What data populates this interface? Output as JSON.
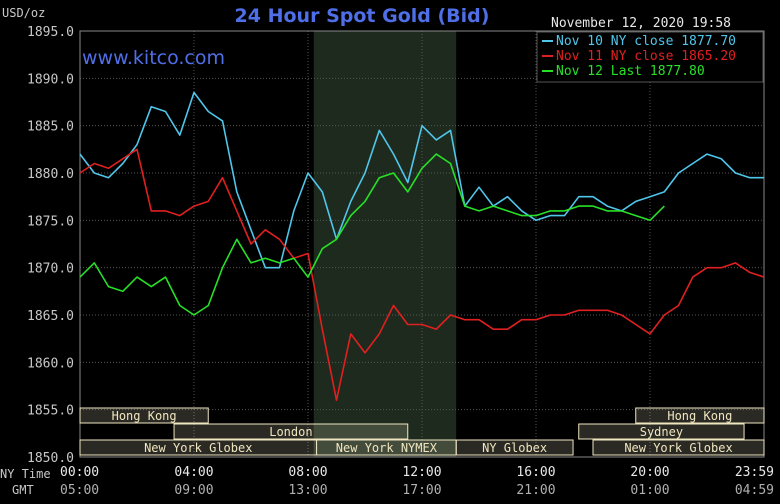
{
  "chart_data": {
    "type": "line",
    "title": "24 Hour Spot Gold (Bid)",
    "unit_label": "USD/oz",
    "timestamp": "November 12, 2020 19:58",
    "watermark": "www.kitco.com",
    "ylim": [
      1850,
      1895
    ],
    "yticks": [
      "1895.0",
      "1890.0",
      "1885.0",
      "1880.0",
      "1875.0",
      "1870.0",
      "1865.0",
      "1860.0",
      "1855.0",
      "1850.0"
    ],
    "xlim": [
      0,
      24
    ],
    "xticks": [
      {
        "x": 0,
        "ny": "00:00",
        "gmt": "05:00"
      },
      {
        "x": 4,
        "ny": "04:00",
        "gmt": "09:00"
      },
      {
        "x": 8,
        "ny": "08:00",
        "gmt": "13:00"
      },
      {
        "x": 12,
        "ny": "12:00",
        "gmt": "17:00"
      },
      {
        "x": 16,
        "ny": "16:00",
        "gmt": "21:00"
      },
      {
        "x": 20,
        "ny": "20:00",
        "gmt": "01:00"
      },
      {
        "x": 24,
        "ny": "23:59",
        "gmt": "04:59"
      }
    ],
    "axis_row_labels": {
      "ny": "NY Time",
      "gmt": "GMT"
    },
    "colors": {
      "background": "#000000",
      "grid": "#555555",
      "axis_text": "#c8c8c8",
      "title": "#4f6fe8",
      "nymex_band": "#1e2a1e",
      "session_fill": "#efe6c0",
      "session_text": "#000000"
    },
    "nymex_band": [
      8.2,
      13.2
    ],
    "sessions": [
      {
        "label": "Hong Kong",
        "row": 0,
        "start": 0,
        "end": 4.5
      },
      {
        "label": "London",
        "row": 1,
        "start": 3.3,
        "end": 11.5
      },
      {
        "label": "New York Globex",
        "row": 2,
        "start": 0,
        "end": 8.3
      },
      {
        "label": "New York NYMEX",
        "row": 2,
        "start": 8.3,
        "end": 13.2
      },
      {
        "label": "NY Globex",
        "row": 2,
        "start": 13.2,
        "end": 17.3
      },
      {
        "label": "Hong Kong",
        "row": 0,
        "start": 19.5,
        "end": 24
      },
      {
        "label": "Sydney",
        "row": 1,
        "start": 17.5,
        "end": 23.3
      },
      {
        "label": "New York Globex",
        "row": 2,
        "start": 18,
        "end": 24
      }
    ],
    "series": [
      {
        "name": "Nov 10 NY close 1877.70",
        "color": "#4fc6ea",
        "x": [
          0,
          0.5,
          1,
          1.5,
          2,
          2.5,
          3,
          3.5,
          4,
          4.5,
          5,
          5.5,
          6,
          6.5,
          7,
          7.5,
          8,
          8.5,
          9,
          9.5,
          10,
          10.5,
          11,
          11.5,
          12,
          12.5,
          13,
          13.5,
          14,
          14.5,
          15,
          15.5,
          16,
          16.5,
          17,
          17.5,
          18,
          18.5,
          19,
          19.5,
          20,
          20.5,
          21,
          21.5,
          22,
          22.5,
          23,
          23.5,
          24
        ],
        "values": [
          1882.0,
          1880.0,
          1879.5,
          1881.0,
          1883.0,
          1887.0,
          1886.5,
          1884.0,
          1888.5,
          1886.5,
          1885.5,
          1878.0,
          1874.0,
          1870.0,
          1870.0,
          1876.0,
          1880.0,
          1878.0,
          1873.0,
          1877.0,
          1880.0,
          1884.5,
          1882.0,
          1879.0,
          1885.0,
          1883.5,
          1884.5,
          1876.5,
          1878.5,
          1876.5,
          1877.5,
          1876.0,
          1875.0,
          1875.5,
          1875.5,
          1877.5,
          1877.5,
          1876.5,
          1876.0,
          1877.0,
          1877.5,
          1878.0,
          1880.0,
          1881.0,
          1882.0,
          1881.5,
          1880.0,
          1879.5,
          1879.5
        ]
      },
      {
        "name": "Nov 11 NY close 1865.20",
        "color": "#e02020",
        "x": [
          0,
          0.5,
          1,
          1.5,
          2,
          2.5,
          3,
          3.5,
          4,
          4.5,
          5,
          5.5,
          6,
          6.5,
          7,
          7.5,
          8,
          8.5,
          9,
          9.5,
          10,
          10.5,
          11,
          11.5,
          12,
          12.5,
          13,
          13.5,
          14,
          14.5,
          15,
          15.5,
          16,
          16.5,
          17,
          17.5,
          18,
          18.5,
          19,
          19.5,
          20,
          20.5,
          21,
          21.5,
          22,
          22.5,
          23,
          23.5,
          24
        ],
        "values": [
          1880.0,
          1881.0,
          1880.5,
          1881.5,
          1882.5,
          1876.0,
          1876.0,
          1875.5,
          1876.5,
          1877.0,
          1879.5,
          1876.0,
          1872.5,
          1874.0,
          1873.0,
          1871.0,
          1871.5,
          1863.5,
          1856.0,
          1863.0,
          1861.0,
          1863.0,
          1866.0,
          1864.0,
          1864.0,
          1863.5,
          1865.0,
          1864.5,
          1864.5,
          1863.5,
          1863.5,
          1864.5,
          1864.5,
          1865.0,
          1865.0,
          1865.5,
          1865.5,
          1865.5,
          1865.0,
          1864.0,
          1863.0,
          1865.0,
          1866.0,
          1869.0,
          1870.0,
          1870.0,
          1870.5,
          1869.5,
          1869.0
        ]
      },
      {
        "name": "Nov 12 Last 1877.80",
        "color": "#27e027",
        "x": [
          0,
          0.5,
          1,
          1.5,
          2,
          2.5,
          3,
          3.5,
          4,
          4.5,
          5,
          5.5,
          6,
          6.5,
          7,
          7.5,
          8,
          8.5,
          9,
          9.5,
          10,
          10.5,
          11,
          11.5,
          12,
          12.5,
          13,
          13.5,
          14,
          14.5,
          15,
          15.5,
          16,
          16.5,
          17,
          17.5,
          18,
          18.5,
          19,
          19.5,
          20,
          20.5
        ],
        "values": [
          1869.0,
          1870.5,
          1868.0,
          1867.5,
          1869.0,
          1868.0,
          1869.0,
          1866.0,
          1865.0,
          1866.0,
          1870.0,
          1873.0,
          1870.5,
          1871.0,
          1870.5,
          1871.0,
          1869.0,
          1872.0,
          1873.0,
          1875.5,
          1877.0,
          1879.5,
          1880.0,
          1878.0,
          1880.5,
          1882.0,
          1881.0,
          1876.5,
          1876.0,
          1876.5,
          1876.0,
          1875.5,
          1875.5,
          1876.0,
          1876.0,
          1876.5,
          1876.5,
          1876.0,
          1876.0,
          1875.5,
          1875.0,
          1876.5
        ]
      }
    ],
    "legend_position": "top-right"
  }
}
